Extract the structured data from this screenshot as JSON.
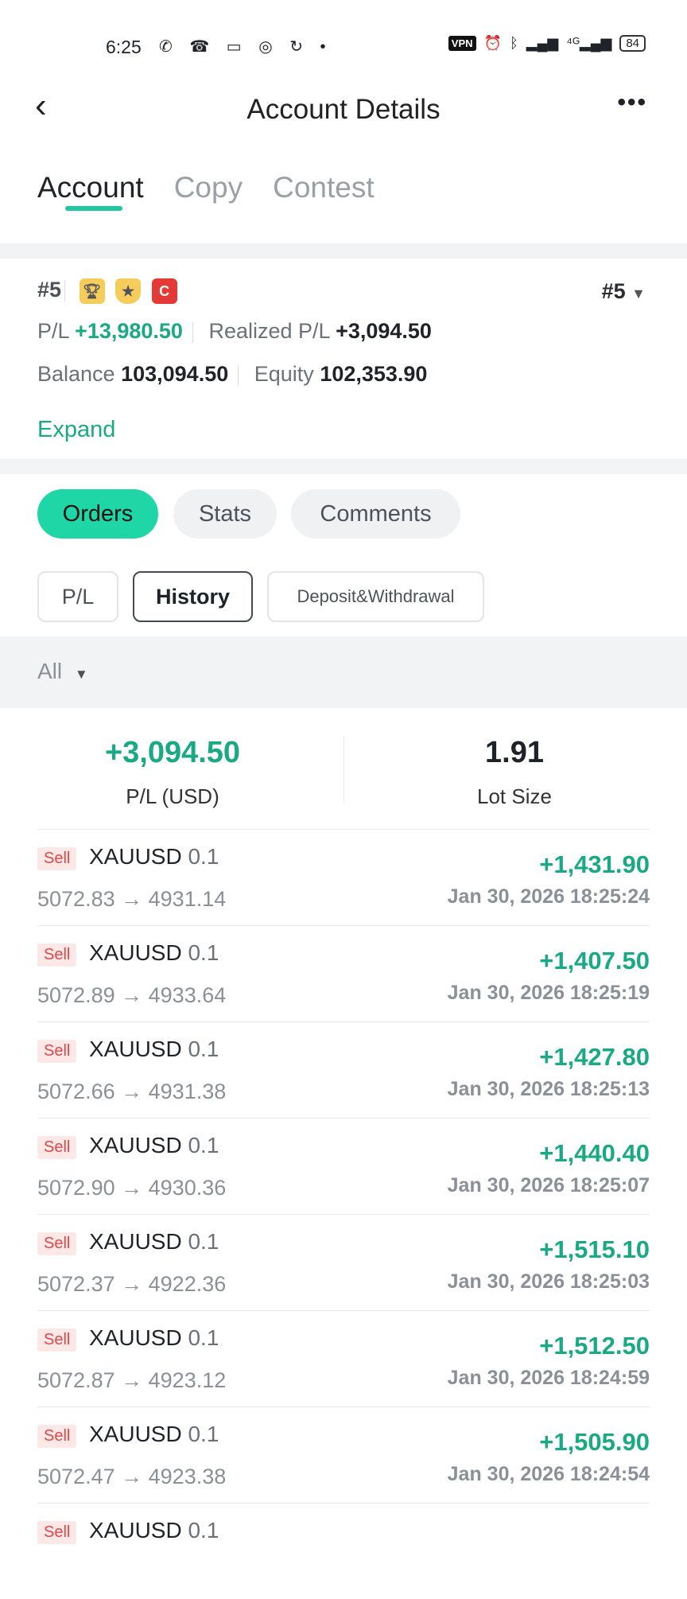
{
  "status_bar": {
    "time": "6:25",
    "left_icons": [
      "whatsapp-icon",
      "missed-call-icon",
      "sim-icon",
      "instagram-icon",
      "sync-icon",
      "dot-icon"
    ],
    "vpn": "VPN",
    "battery": "84"
  },
  "header": {
    "title": "Account Details",
    "back": "‹",
    "more": "•••"
  },
  "tabs": [
    {
      "label": "Account",
      "active": true
    },
    {
      "label": "Copy"
    },
    {
      "label": "Contest"
    }
  ],
  "account": {
    "id": "#5",
    "badge_c": "C",
    "selector": "#5",
    "pl_label": "P/L",
    "pl_value": "+13,980.50",
    "realized_label": "Realized P/L",
    "realized_value": "+3,094.50",
    "balance_label": "Balance",
    "balance_value": "103,094.50",
    "equity_label": "Equity",
    "equity_value": "102,353.90",
    "expand": "Expand"
  },
  "section_tabs": [
    {
      "label": "Orders",
      "active": true
    },
    {
      "label": "Stats"
    },
    {
      "label": "Comments"
    }
  ],
  "order_tabs": [
    {
      "label": "P/L"
    },
    {
      "label": "History",
      "active": true
    },
    {
      "label": "Deposit&Withdrawal"
    }
  ],
  "filter": {
    "value": "All"
  },
  "summary": {
    "pl_value": "+3,094.50",
    "pl_label": "P/L (USD)",
    "lot_value": "1.91",
    "lot_label": "Lot Size"
  },
  "orders": [
    {
      "side": "Sell",
      "symbol": "XAUUSD",
      "lot": "0.1",
      "open": "5072.83",
      "close": "4931.14",
      "pl": "+1,431.90",
      "time": "Jan 30, 2026 18:25:24"
    },
    {
      "side": "Sell",
      "symbol": "XAUUSD",
      "lot": "0.1",
      "open": "5072.89",
      "close": "4933.64",
      "pl": "+1,407.50",
      "time": "Jan 30, 2026 18:25:19"
    },
    {
      "side": "Sell",
      "symbol": "XAUUSD",
      "lot": "0.1",
      "open": "5072.66",
      "close": "4931.38",
      "pl": "+1,427.80",
      "time": "Jan 30, 2026 18:25:13"
    },
    {
      "side": "Sell",
      "symbol": "XAUUSD",
      "lot": "0.1",
      "open": "5072.90",
      "close": "4930.36",
      "pl": "+1,440.40",
      "time": "Jan 30, 2026 18:25:07"
    },
    {
      "side": "Sell",
      "symbol": "XAUUSD",
      "lot": "0.1",
      "open": "5072.37",
      "close": "4922.36",
      "pl": "+1,515.10",
      "time": "Jan 30, 2026 18:25:03"
    },
    {
      "side": "Sell",
      "symbol": "XAUUSD",
      "lot": "0.1",
      "open": "5072.87",
      "close": "4923.12",
      "pl": "+1,512.50",
      "time": "Jan 30, 2026 18:24:59"
    },
    {
      "side": "Sell",
      "symbol": "XAUUSD",
      "lot": "0.1",
      "open": "5072.47",
      "close": "4923.38",
      "pl": "+1,505.90",
      "time": "Jan 30, 2026 18:24:54"
    },
    {
      "side": "Sell",
      "symbol": "XAUUSD",
      "lot": "0.1"
    }
  ],
  "colors": {
    "accent": "#1fd6a6",
    "profit": "#1aa985",
    "sell": "#e04848"
  }
}
